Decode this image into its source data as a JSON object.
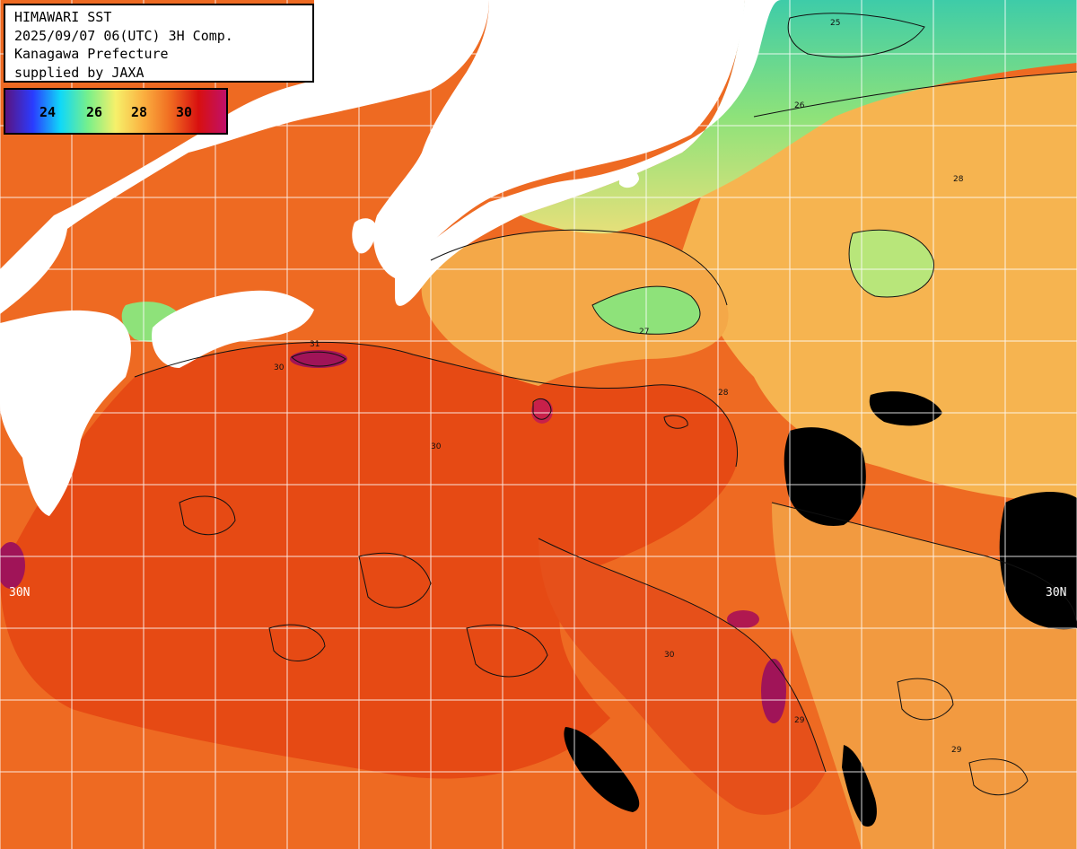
{
  "header": {
    "line1": "HIMAWARI SST",
    "line2": "2025/09/07 06(UTC) 3H Comp.",
    "line3": "Kanagawa Prefecture",
    "line4": "supplied by JAXA"
  },
  "legend": {
    "ticks": [
      "24",
      "26",
      "28",
      "30"
    ],
    "colors": [
      "#5a1480",
      "#2a3cff",
      "#10d8f8",
      "#78f08a",
      "#f6f06a",
      "#fbb040",
      "#f06a20",
      "#d81010",
      "#c0106a"
    ]
  },
  "latitude_labels": {
    "left": "30N",
    "right": "30N"
  },
  "contour_labels": [
    "25",
    "26",
    "27",
    "28",
    "29",
    "30",
    "31"
  ],
  "colors": {
    "land": "#ffffff",
    "cloud": "#000000",
    "grid": "#ffffff",
    "sst_31": "#a01458",
    "sst_30": "#e64a14",
    "sst_29": "#f27a2c",
    "sst_28": "#f6b450",
    "sst_27": "#e6e07a",
    "sst_26": "#8ee27a",
    "sst_25": "#3ecca8"
  }
}
